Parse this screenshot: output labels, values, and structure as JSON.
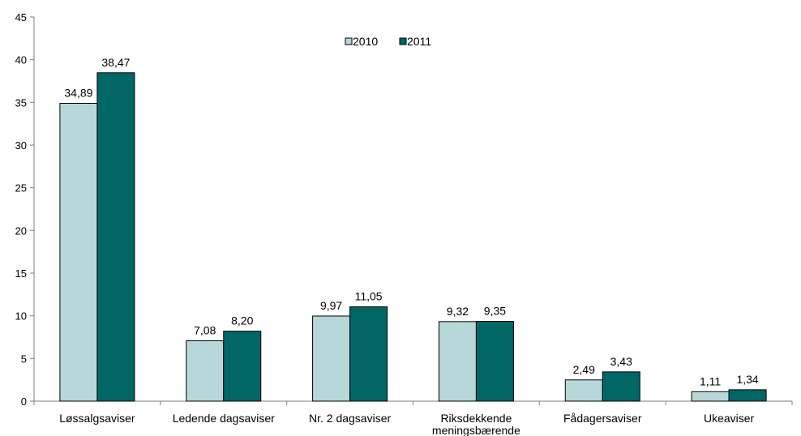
{
  "chart_data": {
    "type": "bar",
    "title": "",
    "xlabel": "",
    "ylabel": "",
    "ylim": [
      0,
      45
    ],
    "yticks": [
      0,
      5,
      10,
      15,
      20,
      25,
      30,
      35,
      40,
      45
    ],
    "grid": false,
    "legend_position": "top-center",
    "categories": [
      "Løssalgsaviser",
      "Ledende dagsaviser",
      "Nr. 2 dagsaviser",
      "Riksdekkende meningsbærende",
      "Fådagersaviser",
      "Ukeaviser"
    ],
    "series": [
      {
        "name": "2010",
        "color": "#b7d7d8",
        "values": [
          34.89,
          7.08,
          9.97,
          9.32,
          2.49,
          1.11
        ],
        "labels": [
          "34,89",
          "7,08",
          "9,97",
          "9,32",
          "2,49",
          "1,11"
        ]
      },
      {
        "name": "2011",
        "color": "#006766",
        "values": [
          38.47,
          8.2,
          11.05,
          9.35,
          3.43,
          1.34
        ],
        "labels": [
          "38,47",
          "8,20",
          "11,05",
          "9,35",
          "3,43",
          "1,34"
        ]
      }
    ]
  }
}
